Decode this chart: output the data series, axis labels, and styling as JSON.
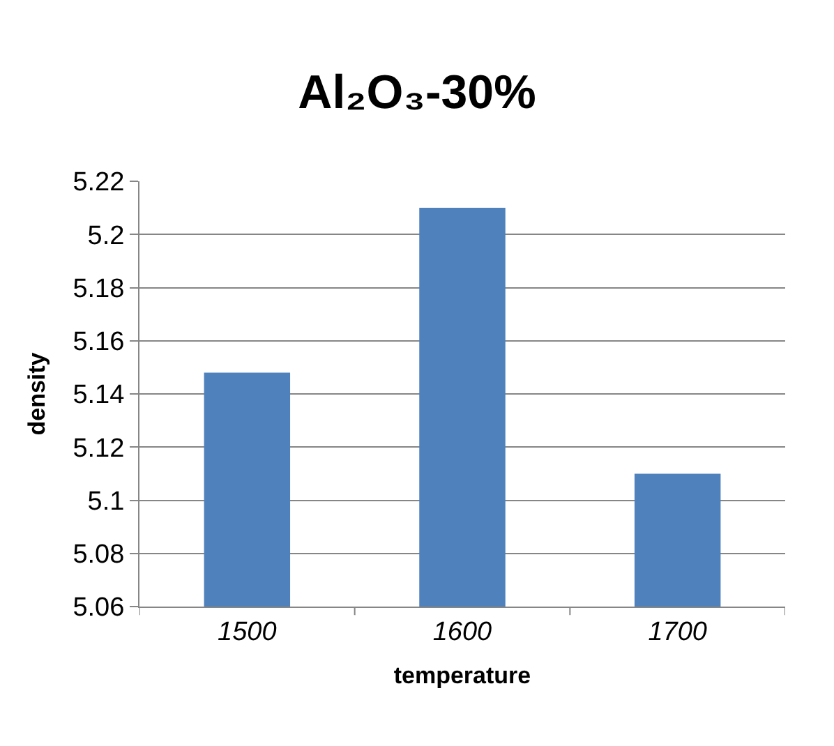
{
  "chart_data": {
    "type": "bar",
    "title": "Al₂O₃-30%",
    "xlabel": "temperature",
    "ylabel": "density",
    "categories": [
      "1500",
      "1600",
      "1700"
    ],
    "series": [
      {
        "color": "#4f81bd",
        "values": [
          5.148,
          5.21,
          5.11
        ]
      }
    ],
    "ylim": [
      5.06,
      5.22
    ],
    "yticks": [
      5.06,
      5.08,
      5.1,
      5.12,
      5.14,
      5.16,
      5.18,
      5.2,
      5.22
    ],
    "grid": "y"
  }
}
